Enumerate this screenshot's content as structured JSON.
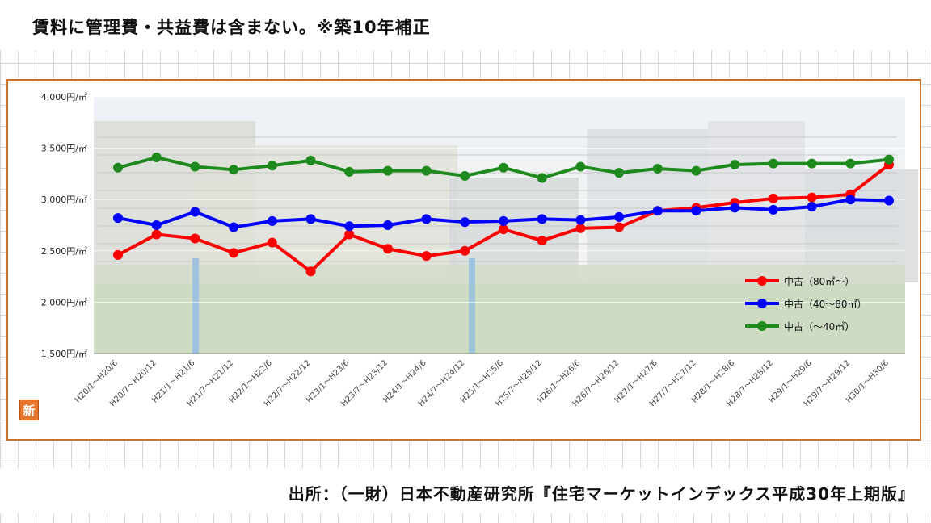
{
  "header": {
    "note": "賃料に管理費・共益費は含まない。※築10年補正"
  },
  "footer": {
    "source": "出所：（一財）日本不動産研究所『住宅マーケットインデックス平成30年上期版』"
  },
  "badge": {
    "label": "新"
  },
  "chart_data": {
    "type": "line",
    "title": "",
    "xlabel": "",
    "ylabel": "",
    "ylim": [
      1500,
      4000
    ],
    "yticks": [
      {
        "value": 4000,
        "label": "4,000円/㎡"
      },
      {
        "value": 3500,
        "label": "3,500円/㎡"
      },
      {
        "value": 3000,
        "label": "3,000円/㎡"
      },
      {
        "value": 2500,
        "label": "2,500円/㎡"
      },
      {
        "value": 2000,
        "label": "2,000円/㎡"
      },
      {
        "value": 1500,
        "label": "1,500円/㎡"
      }
    ],
    "categories": [
      "H20/1～H20/6",
      "H20/7～H20/12",
      "H21/1～H21/6",
      "H21/7～H21/12",
      "H22/1～H22/6",
      "H22/7～H22/12",
      "H23/1～H23/6",
      "H23/7～H23/12",
      "H24/1～H24/6",
      "H24/7～H24/12",
      "H25/1～H25/6",
      "H25/7～H25/12",
      "H26/1～H26/6",
      "H26/7～H26/12",
      "H27/1～H27/6",
      "H27/7～H27/12",
      "H28/1～H28/6",
      "H28/7～H28/12",
      "H29/1～H29/6",
      "H29/7～H29/12",
      "H30/1～H30/6"
    ],
    "series": [
      {
        "name": "中古（80㎡～）",
        "color": "#ff0000",
        "values": [
          2460,
          2660,
          2620,
          2480,
          2580,
          2300,
          2660,
          2520,
          2450,
          2500,
          2710,
          2600,
          2720,
          2730,
          2890,
          2920,
          2970,
          3010,
          3020,
          3050,
          3340
        ]
      },
      {
        "name": "中古（40～80㎡）",
        "color": "#0000ff",
        "values": [
          2820,
          2750,
          2880,
          2730,
          2790,
          2810,
          2740,
          2750,
          2810,
          2780,
          2790,
          2810,
          2800,
          2830,
          2890,
          2890,
          2920,
          2900,
          2930,
          3000,
          2990
        ]
      },
      {
        "name": "中古（～40㎡）",
        "color": "#1e8a1e",
        "values": [
          3310,
          3410,
          3320,
          3290,
          3330,
          3380,
          3270,
          3280,
          3280,
          3230,
          3310,
          3210,
          3320,
          3260,
          3300,
          3280,
          3340,
          3350,
          3350,
          3350,
          3390
        ]
      }
    ],
    "legend_position": "right-middle",
    "background": "photo of apartment buildings (faded)"
  }
}
